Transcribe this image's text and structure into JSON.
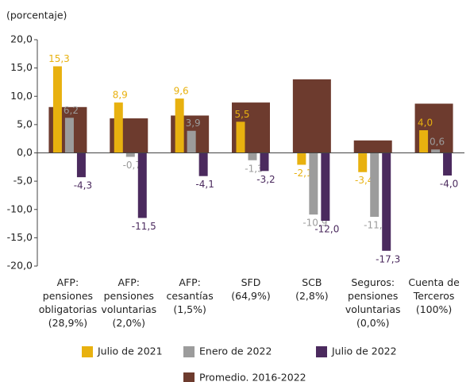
{
  "chart_data": {
    "type": "bar",
    "y_label": "(porcentaje)",
    "categories": [
      [
        "AFP:",
        "pensiones",
        "obligatorias",
        "(28,9%)"
      ],
      [
        "AFP:",
        "pensiones",
        "voluntarias",
        "(2,0%)"
      ],
      [
        "AFP:",
        "cesantías",
        "(1,5%)"
      ],
      [
        "SFD",
        "(64,9%)"
      ],
      [
        "SCB",
        "(2,8%)"
      ],
      [
        "Seguros:",
        "pensiones",
        "voluntarias",
        "(0,0%)"
      ],
      [
        "Cuenta de",
        "Terceros",
        "(100%)"
      ]
    ],
    "series": [
      {
        "name": "Julio de 2021",
        "color": "#e8b10f",
        "values": [
          15.3,
          8.9,
          9.6,
          5.5,
          -2.1,
          -3.4,
          4.0
        ],
        "value_labels": [
          "15,3",
          "8,9",
          "9,6",
          "5,5",
          "-2,1",
          "-3,4",
          "4,0"
        ]
      },
      {
        "name": "Enero de 2022",
        "color": "#9c9c9c",
        "values": [
          6.2,
          -0.7,
          3.9,
          -1.3,
          -10.9,
          -11.3,
          0.6
        ],
        "value_labels": [
          "6,2",
          "-0,7",
          "3,9",
          "-1,3",
          "-10,9",
          "-11,3",
          "0,6"
        ]
      },
      {
        "name": "Julio de 2022",
        "color": "#4b2a5e",
        "values": [
          -4.3,
          -11.5,
          -4.1,
          -3.2,
          -12.0,
          -17.3,
          -4.0
        ],
        "value_labels": [
          "-4,3",
          "-11,5",
          "-4,1",
          "-3,2",
          "-12,0",
          "-17,3",
          "-4,0"
        ]
      },
      {
        "name": "Promedio. 2016-2022",
        "color": "#6d3b2e",
        "values": [
          8.1,
          6.1,
          6.6,
          8.9,
          13.0,
          2.2,
          8.7
        ]
      }
    ],
    "ylim": [
      -20,
      20
    ],
    "yticks": [
      {
        "value": 20,
        "label": "20,0"
      },
      {
        "value": 15,
        "label": "15,0"
      },
      {
        "value": 10,
        "label": "10,0"
      },
      {
        "value": 5,
        "label": "5,0"
      },
      {
        "value": 0,
        "label": "0,0"
      },
      {
        "value": -5,
        "label": "-5,0"
      },
      {
        "value": -10,
        "label": "-10,0"
      },
      {
        "value": -15,
        "label": "-15,0"
      },
      {
        "value": -20,
        "label": "-20,0"
      }
    ],
    "grid": false
  }
}
